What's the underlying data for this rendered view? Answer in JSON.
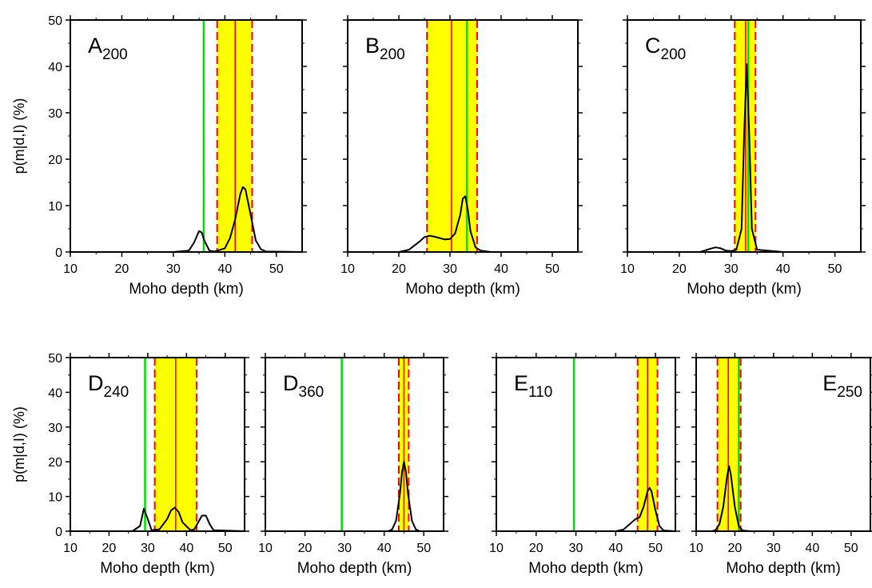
{
  "chart_data": [
    {
      "type": "line",
      "panel": "A",
      "subscript": "200",
      "xlabel": "Moho depth (km)",
      "ylabel": "p(m|d,I) (%)",
      "xlim": [
        10,
        55
      ],
      "ylim": [
        0,
        50
      ],
      "xticks": [
        10,
        20,
        30,
        40,
        50
      ],
      "yticks": [
        0,
        10,
        20,
        30,
        40,
        50
      ],
      "band": [
        38.5,
        45.3
      ],
      "band_center": 42.0,
      "reference": 35.9,
      "x": [
        10,
        30,
        33,
        34,
        35,
        35.5,
        36,
        37,
        38,
        40,
        41,
        42,
        43,
        43.5,
        44,
        45,
        46,
        47,
        48,
        55
      ],
      "y": [
        0,
        0,
        0.3,
        2,
        4.5,
        4.2,
        2.5,
        0.3,
        0.1,
        0.8,
        3,
        7,
        12.5,
        14,
        13.5,
        8,
        2.5,
        0.6,
        0.1,
        0
      ]
    },
    {
      "type": "line",
      "panel": "B",
      "subscript": "200",
      "xlabel": "Moho depth (km)",
      "ylabel": "",
      "xlim": [
        10,
        55
      ],
      "ylim": [
        0,
        50
      ],
      "xticks": [
        10,
        20,
        30,
        40,
        50
      ],
      "yticks": [
        0,
        10,
        20,
        30,
        40,
        50
      ],
      "band": [
        25.5,
        35.3
      ],
      "band_center": 30.3,
      "reference": 33.3,
      "x": [
        10,
        20,
        22,
        24,
        25,
        26,
        27,
        28,
        29,
        30,
        31,
        32,
        32.5,
        33,
        33.5,
        34,
        35,
        36,
        38,
        55
      ],
      "y": [
        0,
        0,
        0.5,
        2.2,
        3.2,
        3.5,
        3.3,
        3.0,
        2.7,
        2.8,
        4.0,
        8.0,
        11.5,
        12.0,
        9.0,
        4.5,
        1.0,
        0.3,
        0,
        0
      ]
    },
    {
      "type": "line",
      "panel": "C",
      "subscript": "200",
      "xlabel": "Moho depth (km)",
      "ylabel": "",
      "xlim": [
        10,
        55
      ],
      "ylim": [
        0,
        50
      ],
      "xticks": [
        10,
        20,
        30,
        40,
        50
      ],
      "yticks": [
        0,
        10,
        20,
        30,
        40,
        50
      ],
      "band": [
        30.7,
        34.7
      ],
      "band_center": 32.8,
      "reference": 33.3,
      "x": [
        10,
        24,
        26,
        27,
        28,
        29,
        30,
        31,
        32,
        32.5,
        33,
        33.5,
        34,
        35,
        40,
        55
      ],
      "y": [
        0,
        0,
        0.7,
        1.0,
        0.8,
        0.3,
        0.2,
        0.5,
        5,
        25,
        40.5,
        25,
        5,
        0.5,
        0,
        0
      ]
    },
    {
      "type": "line",
      "panel": "D",
      "subscript": "240",
      "xlabel": "Moho depth (km)",
      "ylabel": "p(m|d,I) (%)",
      "xlim": [
        10,
        55
      ],
      "ylim": [
        0,
        50
      ],
      "xticks": [
        10,
        20,
        30,
        40,
        50
      ],
      "yticks": [
        0,
        10,
        20,
        30,
        40,
        50
      ],
      "band": [
        31.8,
        42.6
      ],
      "band_center": 37.2,
      "reference": 29.3,
      "x": [
        10,
        26,
        28,
        29,
        30,
        31,
        33,
        35,
        36,
        37,
        38,
        39,
        41,
        42,
        43,
        44,
        45,
        46,
        47,
        55
      ],
      "y": [
        0,
        0,
        1.5,
        6.5,
        3.5,
        0.3,
        0.5,
        3.5,
        6.0,
        6.8,
        5.5,
        2.5,
        0.3,
        0.5,
        2.5,
        4.5,
        4.5,
        2.0,
        0.3,
        0
      ]
    },
    {
      "type": "line",
      "panel": "D",
      "subscript": "360",
      "xlabel": "Moho depth (km)",
      "ylabel": "",
      "xlim": [
        10,
        55
      ],
      "ylim": [
        0,
        50
      ],
      "xticks": [
        10,
        20,
        30,
        40,
        50
      ],
      "yticks": [
        0,
        10,
        20,
        30,
        40,
        50
      ],
      "band": [
        43.7,
        46.2
      ],
      "band_center": 45.0,
      "reference": 29.3,
      "x": [
        10,
        41,
        42,
        43,
        44,
        44.5,
        45,
        45.5,
        46,
        47,
        48,
        49,
        55
      ],
      "y": [
        0,
        0,
        0.5,
        3,
        11,
        17,
        20,
        17,
        11,
        3,
        0.5,
        0,
        0
      ]
    },
    {
      "type": "line",
      "panel": "E",
      "subscript": "110",
      "xlabel": "Moho depth (km)",
      "ylabel": "",
      "xlim": [
        10,
        55
      ],
      "ylim": [
        0,
        50
      ],
      "xticks": [
        10,
        20,
        30,
        40,
        50
      ],
      "yticks": [
        0,
        10,
        20,
        30,
        40,
        50
      ],
      "band": [
        45.5,
        50.5
      ],
      "band_center": 48.0,
      "reference": 29.5,
      "x": [
        10,
        40,
        42,
        44,
        45,
        46,
        47,
        48,
        48.5,
        49,
        50,
        51,
        52,
        55
      ],
      "y": [
        0,
        0,
        0.5,
        2.5,
        3.5,
        4.0,
        7.0,
        11.5,
        12.5,
        11.5,
        6.0,
        1.5,
        0.2,
        0
      ]
    },
    {
      "type": "line",
      "panel": "E",
      "subscript": "250",
      "xlabel": "Moho depth (km)",
      "ylabel": "",
      "xlim": [
        10,
        55
      ],
      "ylim": [
        0,
        50
      ],
      "xticks": [
        10,
        20,
        30,
        40,
        50
      ],
      "yticks": [
        0,
        10,
        20,
        30,
        40,
        50
      ],
      "band": [
        15.5,
        21.5
      ],
      "band_center": 18.3,
      "reference": 21.0,
      "x": [
        10,
        14,
        15,
        16,
        17,
        18,
        18.5,
        19,
        20,
        21,
        22,
        24,
        55
      ],
      "y": [
        0,
        0,
        0.3,
        2.0,
        7.0,
        16.0,
        18.7,
        16.0,
        7.0,
        1.5,
        0.2,
        0,
        0
      ]
    }
  ],
  "colors": {
    "band_fill": "#ffff00",
    "band_edge": "#ff0000",
    "center_line": "#ff0000",
    "reference_line": "#00dd00",
    "curve": "#000000",
    "frame": "#000000"
  }
}
